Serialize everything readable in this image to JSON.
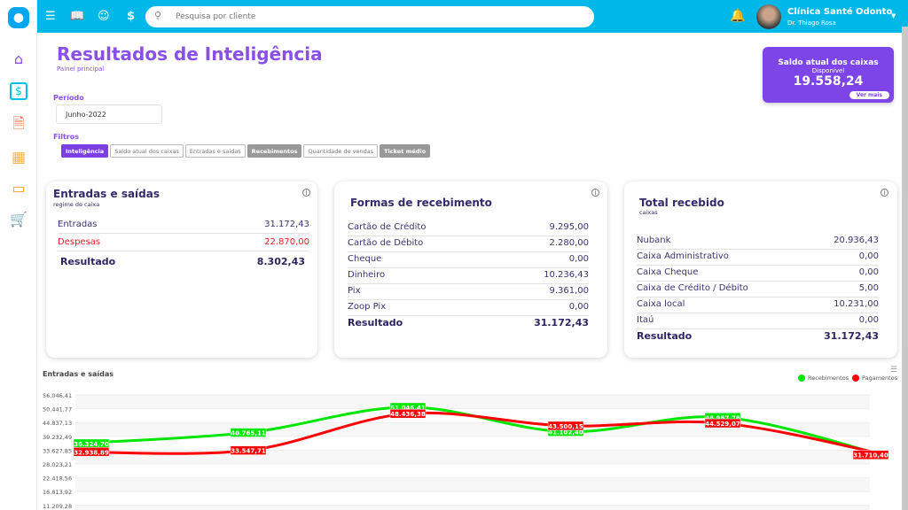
{
  "header": {
    "search_placeholder": "Pesquisa por cliente",
    "clinic_name": "Clínica Santé Odonto",
    "doctor_name": "Dr. Thiago Rosa"
  },
  "page": {
    "title": "Resultados de Inteligência",
    "subtitle": "Painel principal",
    "period_label": "Período",
    "period_value": "Junho-2022",
    "filters_label": "Filtros",
    "filters": [
      {
        "label": "Inteligência",
        "state": "active"
      },
      {
        "label": "Saldo atual dos caixas",
        "state": "normal"
      },
      {
        "label": "Entradas e saídas",
        "state": "normal"
      },
      {
        "label": "Recebimentos",
        "state": "gray"
      },
      {
        "label": "Quantidade de vendas",
        "state": "normal"
      },
      {
        "label": "Ticket médio",
        "state": "gray"
      }
    ]
  },
  "saldo": {
    "title": "Saldo atual dos caixas",
    "label": "Disponível",
    "value": "19.558,24",
    "button": "Ver mais"
  },
  "cards": {
    "entradas": {
      "title": "Entradas e saídas",
      "subtitle": "regime de caixa",
      "rows": [
        {
          "label": "Entradas",
          "value": "31.172,43"
        },
        {
          "label": "Despesas",
          "value": "22.870,00"
        },
        {
          "label": "Resultado",
          "value": "8.302,43"
        }
      ]
    },
    "formas": {
      "title": "Formas de recebimento",
      "rows": [
        {
          "label": "Cartão de Crédito",
          "value": "9.295,00"
        },
        {
          "label": "Cartão de Débito",
          "value": "2.280,00"
        },
        {
          "label": "Cheque",
          "value": "0,00"
        },
        {
          "label": "Dinheiro",
          "value": "10.236,43"
        },
        {
          "label": "Pix",
          "value": "9.361,00"
        },
        {
          "label": "Zoop Pix",
          "value": "0,00"
        },
        {
          "label": "Resultado",
          "value": "31.172,43"
        }
      ]
    },
    "total": {
      "title": "Total recebido",
      "subtitle": "caixas",
      "rows": [
        {
          "label": "Nubank",
          "value": "20.936,43"
        },
        {
          "label": "Caixa Administrativo",
          "value": "0,00"
        },
        {
          "label": "Caixa Cheque",
          "value": "0,00"
        },
        {
          "label": "Caixa de Crédito / Débito",
          "value": "5,00"
        },
        {
          "label": "Caixa local",
          "value": "10.231,00"
        },
        {
          "label": "Itaú",
          "value": "0,00"
        },
        {
          "label": "Resultado",
          "value": "31.172,43"
        }
      ]
    }
  },
  "chart_data": {
    "type": "line",
    "title": "Entradas e saídas",
    "yticks": [
      "56.046,41",
      "50.441,77",
      "44.837,13",
      "39.232,49",
      "33.627,85",
      "28.023,21",
      "22.418,56",
      "16.813,92",
      "11.209,28"
    ],
    "ylim": [
      0,
      56046.41
    ],
    "series": [
      {
        "name": "Recebimentos",
        "color": "#00e600",
        "values": [
          36324.7,
          40765.11,
          51046.41,
          41102.4,
          46967.76,
          31200
        ],
        "labels": [
          "36.324,70",
          "40.765,11",
          "51.046,41",
          "41.102,40",
          "46.967,76",
          null
        ]
      },
      {
        "name": "Pagamentos",
        "color": "#ff0000",
        "values": [
          32938.89,
          33547.71,
          48436.38,
          43500.15,
          44529.07,
          31710.4
        ],
        "labels": [
          "32.938,89",
          "33.547,71",
          "48.436,38",
          "43.500,15",
          "44.529,07",
          "31.710,40"
        ]
      }
    ],
    "legend": "top-right"
  }
}
